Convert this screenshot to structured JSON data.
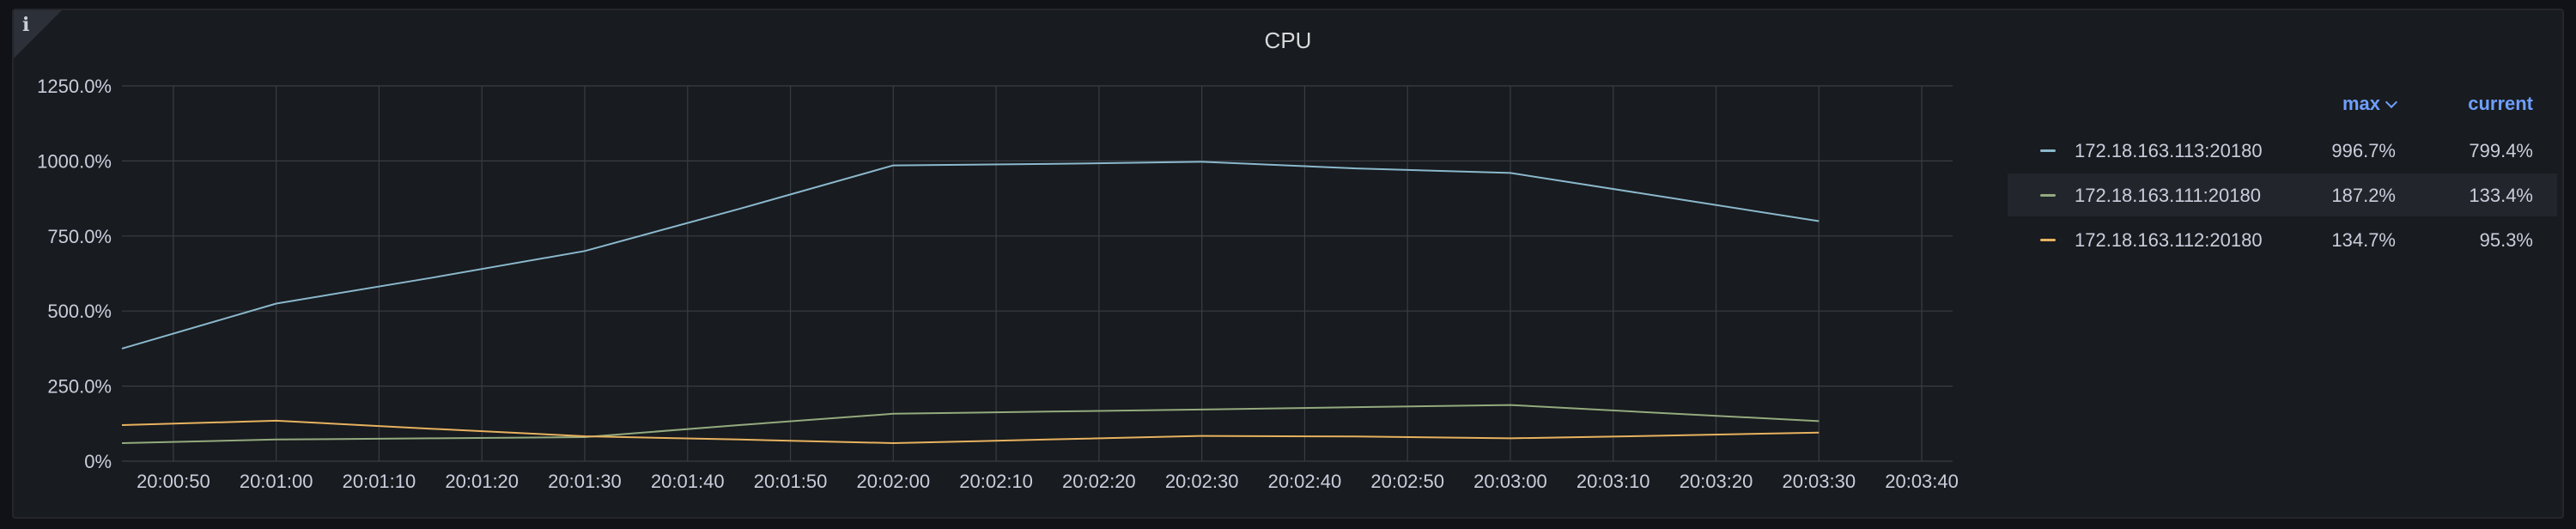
{
  "panel": {
    "title": "CPU",
    "info_icon": "info-icon"
  },
  "legend": {
    "headers": {
      "max": "max",
      "current": "current"
    },
    "sort_indicator": "chevron-down-icon",
    "rows": [
      {
        "name": "172.18.163.113:20180",
        "max": "996.7%",
        "current": "799.4%",
        "color": "#8ab8cc"
      },
      {
        "name": "172.18.163.111:20180",
        "max": "187.2%",
        "current": "133.4%",
        "color": "#93aa7e"
      },
      {
        "name": "172.18.163.112:20180",
        "max": "134.7%",
        "current": "95.3%",
        "color": "#e7b25f"
      }
    ]
  },
  "chart_data": {
    "type": "line",
    "title": "CPU",
    "x": [
      "20:00:45",
      "20:01:00",
      "20:01:15",
      "20:01:30",
      "20:01:45",
      "20:02:00",
      "20:02:15",
      "20:02:30",
      "20:02:45",
      "20:03:00",
      "20:03:15",
      "20:03:30"
    ],
    "x_ticks": [
      "20:00:50",
      "20:01:00",
      "20:01:10",
      "20:01:20",
      "20:01:30",
      "20:01:40",
      "20:01:50",
      "20:02:00",
      "20:02:10",
      "20:02:20",
      "20:02:30",
      "20:02:40",
      "20:02:50",
      "20:03:00",
      "20:03:10",
      "20:03:20",
      "20:03:30",
      "20:03:40"
    ],
    "xlim": [
      "20:00:45",
      "20:03:43"
    ],
    "y_ticks": [
      "0%",
      "250.0%",
      "500.0%",
      "750.0%",
      "1000.0%",
      "1250.0%"
    ],
    "ylim": [
      0,
      1250
    ],
    "grid": true,
    "legend_position": "right",
    "series": [
      {
        "name": "172.18.163.113:20180",
        "color": "#8ab8cc",
        "values": [
          375,
          525,
          610,
          700,
          840,
          985,
          990,
          997,
          975,
          960,
          880,
          799.4
        ]
      },
      {
        "name": "172.18.163.111:20180",
        "color": "#93aa7e",
        "values": [
          60,
          72,
          76,
          80,
          120,
          158,
          165,
          172,
          180,
          187.2,
          160,
          133.4
        ]
      },
      {
        "name": "172.18.163.112:20180",
        "color": "#e7b25f",
        "values": [
          120,
          134.7,
          108,
          83,
          72,
          60,
          72,
          84,
          82,
          76,
          85,
          95.3
        ]
      }
    ]
  }
}
